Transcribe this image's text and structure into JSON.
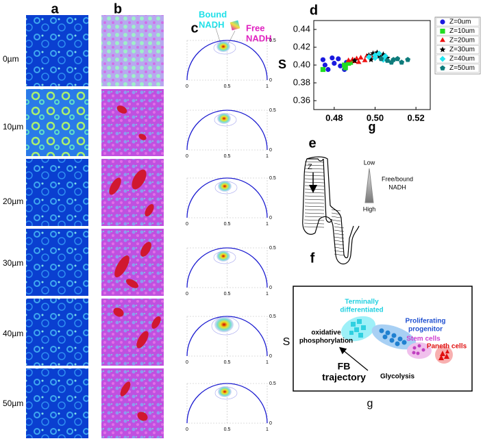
{
  "panel_labels": {
    "a": "a",
    "b": "b",
    "c": "c",
    "d": "d",
    "e": "e",
    "f": "f"
  },
  "depth_labels": [
    "0µm",
    "10µm",
    "20µm",
    "30µm",
    "40µm",
    "50µm"
  ],
  "panel_c": {
    "bound": [
      "Bound",
      "NADH"
    ],
    "free": [
      "Free",
      "NADH"
    ],
    "xticks": [
      0,
      0.5,
      1
    ],
    "yticks": [
      0,
      0.5
    ]
  },
  "chart_data": {
    "type": "scatter",
    "xlabel": "g",
    "ylabel": "S",
    "xlim": [
      0.47,
      0.527
    ],
    "ylim": [
      0.35,
      0.45
    ],
    "xticks": [
      0.48,
      {
        "value": 0.5,
        "label": "0.50"
      },
      0.52
    ],
    "yticks": [
      0.36,
      0.38,
      {
        "value": 0.4,
        "label": "0.40"
      },
      0.42,
      0.44
    ],
    "series": [
      {
        "name": "Z=0um",
        "color": "#1a1adf",
        "marker": "circle",
        "x": [
          0.4745,
          0.4755,
          0.477,
          0.479,
          0.48,
          0.482,
          0.483,
          0.485,
          0.486
        ],
        "values": [
          0.406,
          0.4,
          0.395,
          0.408,
          0.402,
          0.407,
          0.399,
          0.395,
          0.403
        ]
      },
      {
        "name": "Z=10um",
        "color": "#22dd22",
        "marker": "square",
        "x": [
          0.4745,
          0.485,
          0.487,
          0.4855,
          0.488
        ],
        "values": [
          0.395,
          0.4,
          0.402,
          0.397,
          0.403
        ]
      },
      {
        "name": "Z=20um",
        "color": "#ee1111",
        "marker": "triangle",
        "x": [
          0.487,
          0.489,
          0.49,
          0.491,
          0.493,
          0.495,
          0.496,
          0.499,
          0.492
        ],
        "values": [
          0.405,
          0.406,
          0.404,
          0.407,
          0.408,
          0.405,
          0.41,
          0.409,
          0.403
        ]
      },
      {
        "name": "Z=30um",
        "color": "#000000",
        "marker": "star",
        "x": [
          0.49,
          0.497,
          0.499,
          0.501,
          0.502,
          0.504,
          0.506,
          0.498
        ],
        "values": [
          0.405,
          0.411,
          0.413,
          0.414,
          0.41,
          0.412,
          0.408,
          0.406
        ]
      },
      {
        "name": "Z=40um",
        "color": "#22e5f0",
        "marker": "diamond",
        "x": [
          0.497,
          0.5,
          0.502,
          0.504,
          0.505,
          0.5
        ],
        "values": [
          0.409,
          0.411,
          0.413,
          0.406,
          0.41,
          0.408
        ]
      },
      {
        "name": "Z=50um",
        "color": "#0e7b7b",
        "marker": "pentagon",
        "x": [
          0.503,
          0.506,
          0.509,
          0.511,
          0.513,
          0.516,
          0.508
        ],
        "values": [
          0.407,
          0.405,
          0.406,
          0.407,
          0.403,
          0.406,
          0.403
        ]
      }
    ]
  },
  "panel_e": {
    "z": "Z",
    "low": "Low",
    "high": "High",
    "note": [
      "Free/bound",
      "NADH"
    ]
  },
  "panel_f": {
    "terminal": [
      "Terminally",
      "differentiated"
    ],
    "progenitor": [
      "Proliferating",
      "progenitor"
    ],
    "stem": "Stem cells",
    "paneth": "Paneth cells",
    "oxphos": [
      "oxidative",
      "phosphorylation"
    ],
    "trajectory": [
      "FB",
      "trajectory"
    ],
    "glycolysis": "Glycolysis",
    "s": "S",
    "g": "g"
  }
}
